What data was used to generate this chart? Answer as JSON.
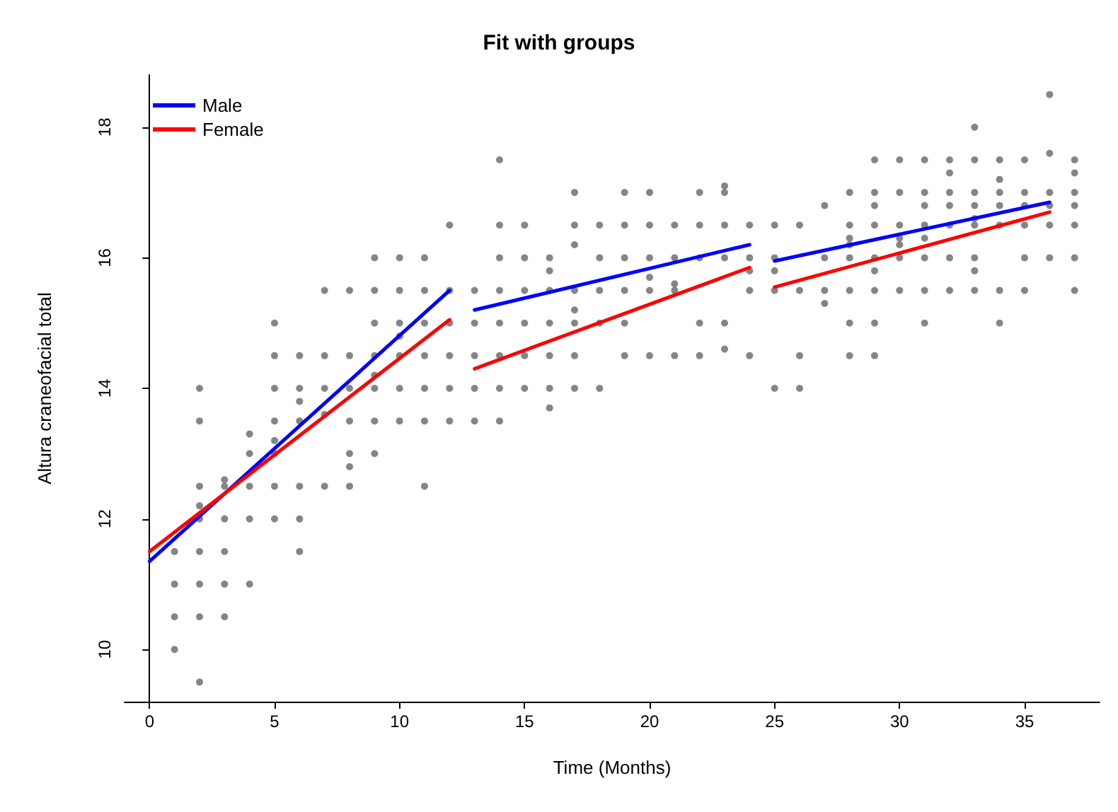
{
  "chart_data": {
    "type": "scatter",
    "title": "Fit with groups",
    "xlabel": "Time (Months)",
    "ylabel": "Altura craneofacial total",
    "xlim": [
      -1,
      38
    ],
    "xticks": [
      0,
      5,
      10,
      15,
      20,
      25,
      30,
      35
    ],
    "ylim": [
      9.2,
      18.8
    ],
    "yticks": [
      10,
      12,
      14,
      16,
      18
    ],
    "grid": false,
    "legend": "top left",
    "series": [
      {
        "marker": "circle",
        "color": "#666666",
        "x": [
          1,
          1,
          1,
          1,
          2,
          2,
          2,
          2,
          2,
          2,
          2,
          2,
          2,
          3,
          3,
          3,
          3,
          3,
          3,
          4,
          4,
          4,
          4,
          4,
          5,
          5,
          5,
          5,
          5,
          5,
          5,
          5,
          6,
          6,
          6,
          6,
          6,
          6,
          6,
          7,
          7,
          7,
          7,
          7,
          8,
          8,
          8,
          8,
          8,
          8,
          8,
          9,
          9,
          9,
          9,
          9,
          9,
          9,
          9,
          10,
          10,
          10,
          10,
          10,
          10,
          10,
          11,
          11,
          11,
          11,
          11,
          11,
          11,
          12,
          12,
          12,
          12,
          12,
          12,
          13,
          13,
          13,
          13,
          13,
          14,
          14,
          14,
          14,
          14,
          14,
          14,
          14,
          15,
          15,
          15,
          15,
          15,
          15,
          16,
          16,
          16,
          16,
          16,
          16,
          16,
          17,
          17,
          17,
          17,
          17,
          17,
          17,
          17,
          18,
          18,
          18,
          18,
          18,
          19,
          19,
          19,
          19,
          19,
          19,
          20,
          20,
          20,
          20,
          20,
          20,
          21,
          21,
          21,
          21,
          21,
          22,
          22,
          22,
          22,
          22,
          23,
          23,
          23,
          23,
          23,
          23,
          24,
          24,
          24,
          24,
          24,
          25,
          25,
          25,
          25,
          25,
          26,
          26,
          26,
          26,
          27,
          27,
          27,
          27,
          28,
          28,
          28,
          28,
          28,
          28,
          28,
          28,
          29,
          29,
          29,
          29,
          29,
          29,
          29,
          29,
          29,
          30,
          30,
          30,
          30,
          30,
          30,
          30,
          31,
          31,
          31,
          31,
          31,
          31,
          31,
          31,
          32,
          32,
          32,
          32,
          32,
          32,
          32,
          33,
          33,
          33,
          33,
          33,
          33,
          33,
          33,
          33,
          34,
          34,
          34,
          34,
          34,
          34,
          34,
          35,
          35,
          35,
          35,
          35,
          35,
          36,
          36,
          36,
          36,
          36,
          36,
          37,
          37,
          37,
          37,
          37,
          37,
          37
        ],
        "values": [
          11.5,
          11,
          10.5,
          10,
          14,
          13.5,
          12.5,
          12.2,
          12,
          11.5,
          11,
          10.5,
          9.5,
          12.6,
          12.5,
          12,
          11.5,
          11,
          10.5,
          13.3,
          13,
          12.5,
          12,
          11,
          15,
          14.5,
          14,
          13.5,
          13.2,
          13,
          12.5,
          12,
          14.5,
          14,
          13.8,
          13.5,
          12.5,
          12,
          11.5,
          15.5,
          14.5,
          14,
          13.6,
          12.5,
          15.5,
          14.5,
          14,
          13.5,
          13,
          12.8,
          12.5,
          16,
          15.5,
          15,
          14.5,
          14.2,
          14,
          13.5,
          13,
          16,
          15.5,
          15,
          14.8,
          14.5,
          14,
          13.5,
          16,
          15.5,
          15,
          14.5,
          14,
          13.5,
          12.5,
          16.5,
          15.5,
          15,
          14.5,
          14,
          13.5,
          15.5,
          15,
          14.5,
          14,
          13.5,
          17.5,
          16.5,
          16,
          15.5,
          15,
          14.5,
          14,
          13.5,
          16.5,
          16,
          15.5,
          15,
          14.5,
          14,
          16,
          15.8,
          15.5,
          15,
          14.5,
          14,
          13.7,
          17,
          16.5,
          16.2,
          15.5,
          15.2,
          15,
          14.5,
          14,
          16.5,
          16,
          15.5,
          15,
          14,
          17,
          16.5,
          16,
          15.5,
          15,
          14.5,
          17,
          16.5,
          16,
          15.7,
          15.5,
          14.5,
          16.5,
          16,
          15.6,
          15.5,
          14.5,
          17,
          16.5,
          16,
          15,
          14.5,
          17.1,
          17,
          16.5,
          16,
          15,
          14.6,
          16.5,
          16,
          15.8,
          15.5,
          14.5,
          16.5,
          16,
          15.8,
          15.5,
          14,
          16.5,
          15.5,
          14.5,
          14,
          16.8,
          16,
          15.5,
          15.3,
          17,
          16.5,
          16.3,
          16.2,
          16,
          15.5,
          15,
          14.5,
          17.5,
          17,
          16.8,
          16.5,
          16,
          15.8,
          15.5,
          15,
          14.5,
          17.5,
          17,
          16.5,
          16.3,
          16.2,
          16,
          15.5,
          17.5,
          17,
          16.8,
          16.5,
          16.3,
          16,
          15.5,
          15,
          17.5,
          17.3,
          17,
          16.8,
          16.5,
          16,
          15.5,
          18,
          17.5,
          17,
          16.8,
          16.6,
          16.5,
          16,
          15.8,
          15.5,
          17.5,
          17.2,
          17,
          16.8,
          16.5,
          15.5,
          15,
          17.5,
          17,
          16.8,
          16.5,
          16,
          15.5,
          18.5,
          17.6,
          17,
          16.8,
          16.5,
          16,
          17.5,
          17.3,
          17,
          16.8,
          16.5,
          16,
          15.5
        ]
      },
      {
        "type": "line",
        "marker": "none",
        "name": "Male",
        "color": "#0000ff",
        "x": [
          0,
          12,
          12.5,
          13,
          24,
          24.5,
          25,
          36
        ],
        "values": [
          11.35,
          15.5,
          null,
          15.2,
          16.2,
          null,
          15.95,
          16.85
        ]
      },
      {
        "type": "line",
        "marker": "none",
        "name": "Female",
        "color": "#ff0000",
        "x": [
          0,
          12,
          12.5,
          13,
          24,
          24.5,
          25,
          36
        ],
        "values": [
          11.5,
          15.05,
          null,
          14.3,
          15.85,
          null,
          15.55,
          16.7
        ]
      }
    ]
  }
}
